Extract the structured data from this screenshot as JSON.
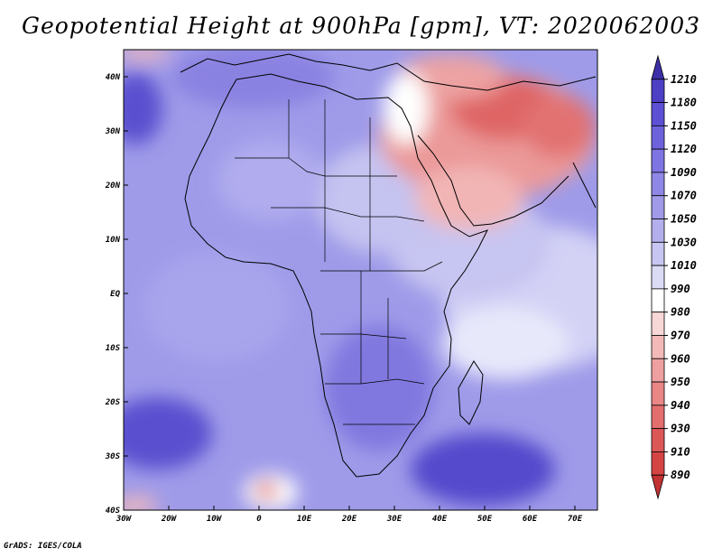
{
  "title": "Geopotential Height at 900hPa [gpm], VT: 2020062003",
  "credit": "GrADS: IGES/COLA",
  "map": {
    "variable": "Geopotential Height",
    "level": "900hPa",
    "units": "gpm",
    "valid_time": "2020062003",
    "lon_ticks": [
      "30W",
      "20W",
      "10W",
      "0",
      "10E",
      "20E",
      "30E",
      "40E",
      "50E",
      "60E",
      "70E"
    ],
    "lat_ticks": [
      "40N",
      "30N",
      "20N",
      "10N",
      "EQ",
      "10S",
      "20S",
      "30S",
      "40S"
    ],
    "lon_range": [
      -30,
      75
    ],
    "lat_range": [
      -40,
      45
    ]
  },
  "colorbar": {
    "levels": [
      "1210",
      "1180",
      "1150",
      "1120",
      "1090",
      "1070",
      "1050",
      "1030",
      "1010",
      "990",
      "980",
      "970",
      "960",
      "950",
      "940",
      "930",
      "910",
      "890"
    ],
    "colors": [
      "#3c2fa8",
      "#4d40c4",
      "#5d50d4",
      "#6e62dc",
      "#7e74e2",
      "#8f87e6",
      "#a09ae9",
      "#b3afed",
      "#c7c5f1",
      "#dcdbf6",
      "#ffffff",
      "#f8d7d7",
      "#f3b9b9",
      "#ee9f9f",
      "#e98686",
      "#e36e6e",
      "#dc5757",
      "#d44444",
      "#c23232"
    ]
  },
  "colors": {
    "background": "#ffffff",
    "ocean_base": "#a3a0ea",
    "border": "#000000"
  }
}
